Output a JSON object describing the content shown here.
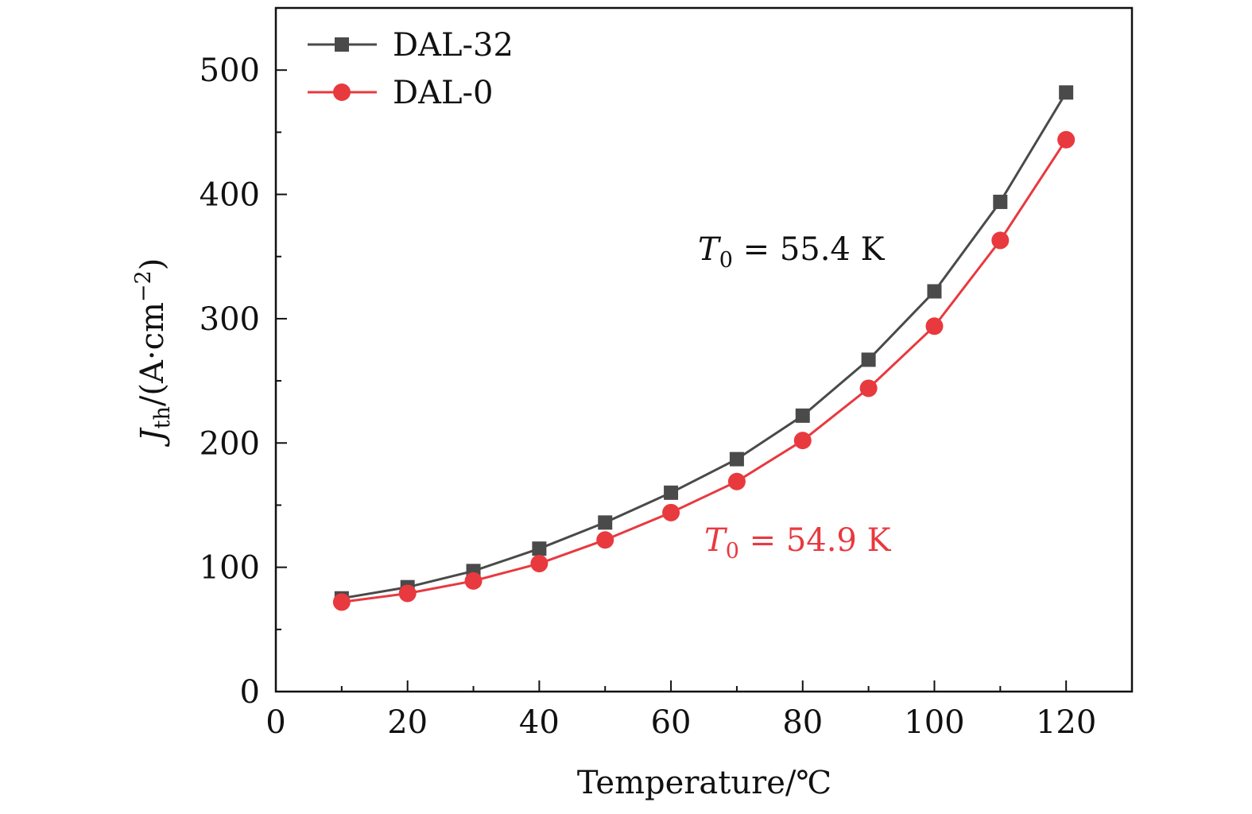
{
  "chart_data": {
    "type": "line",
    "x": [
      10,
      20,
      30,
      40,
      50,
      60,
      70,
      80,
      90,
      100,
      110,
      120
    ],
    "series": [
      {
        "name": "DAL-32",
        "values": [
          75,
          84,
          97,
          115,
          136,
          160,
          187,
          222,
          267,
          322,
          394,
          482
        ],
        "color": "#4a4a4a",
        "marker": "square"
      },
      {
        "name": "DAL-0",
        "values": [
          72,
          79,
          89,
          103,
          122,
          144,
          169,
          202,
          244,
          294,
          363,
          444
        ],
        "color": "#e8393f",
        "marker": "circle"
      }
    ],
    "xlabel": "Temperature/℃",
    "ylabel": {
      "symbol": "J",
      "subscript": "th",
      "unit_prefix": "/(A·cm",
      "unit_exp": "−2",
      "unit_suffix": ")"
    },
    "xlim": [
      0,
      130
    ],
    "ylim": [
      0,
      550
    ],
    "xticks": [
      0,
      20,
      40,
      60,
      80,
      100,
      120
    ],
    "yticks": [
      0,
      100,
      200,
      300,
      400,
      500
    ],
    "grid": false,
    "legend": "top-left",
    "annotations": [
      {
        "symbol": "T",
        "subscript": "0",
        "text": " = 55.4 K",
        "color": "#111111",
        "series": "DAL-32"
      },
      {
        "symbol": "T",
        "subscript": "0",
        "text": " = 54.9 K",
        "color": "#e8393f",
        "series": "DAL-0"
      }
    ]
  }
}
